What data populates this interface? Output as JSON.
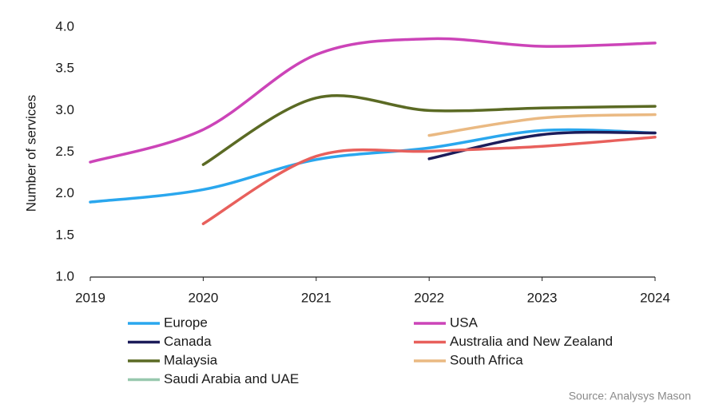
{
  "chart_data": {
    "type": "line",
    "y_label": "Number of services",
    "source": "Source: Analysys Mason",
    "categories": [
      "2019",
      "2020",
      "2021",
      "2022",
      "2023",
      "2024"
    ],
    "ylim": [
      1,
      4
    ],
    "yticks": [
      {
        "value": 1,
        "label": "1.0"
      },
      {
        "value": 1.5,
        "label": "1.5"
      },
      {
        "value": 2,
        "label": "2.0"
      },
      {
        "value": 2.5,
        "label": "2.5"
      },
      {
        "value": 3,
        "label": "3.0"
      },
      {
        "value": 3.5,
        "label": "3.5"
      },
      {
        "value": 4,
        "label": "4.0"
      }
    ],
    "series": [
      {
        "name": "Europe",
        "color": "#2aa7ee",
        "values": [
          1.9,
          2.05,
          2.41,
          2.55,
          2.76,
          2.73
        ]
      },
      {
        "name": "USA",
        "color": "#cc44b8",
        "values": [
          2.38,
          2.77,
          3.67,
          3.86,
          3.77,
          3.81
        ]
      },
      {
        "name": "Canada",
        "color": "#1c1c5a",
        "values": [
          null,
          null,
          null,
          2.42,
          2.71,
          2.73
        ]
      },
      {
        "name": "Australia and New Zealand",
        "color": "#e8605c",
        "values": [
          null,
          1.64,
          2.45,
          2.51,
          2.57,
          2.68
        ]
      },
      {
        "name": "Malaysia",
        "color": "#5b6a24",
        "values": [
          null,
          2.35,
          3.15,
          3.0,
          3.03,
          3.05
        ]
      },
      {
        "name": "South Africa",
        "color": "#eab982",
        "values": [
          null,
          null,
          null,
          2.7,
          2.91,
          2.95
        ]
      },
      {
        "name": "Saudi Arabia and UAE",
        "color": "#98c8ae",
        "values": [
          null,
          null,
          null,
          null,
          null,
          null
        ]
      }
    ]
  }
}
